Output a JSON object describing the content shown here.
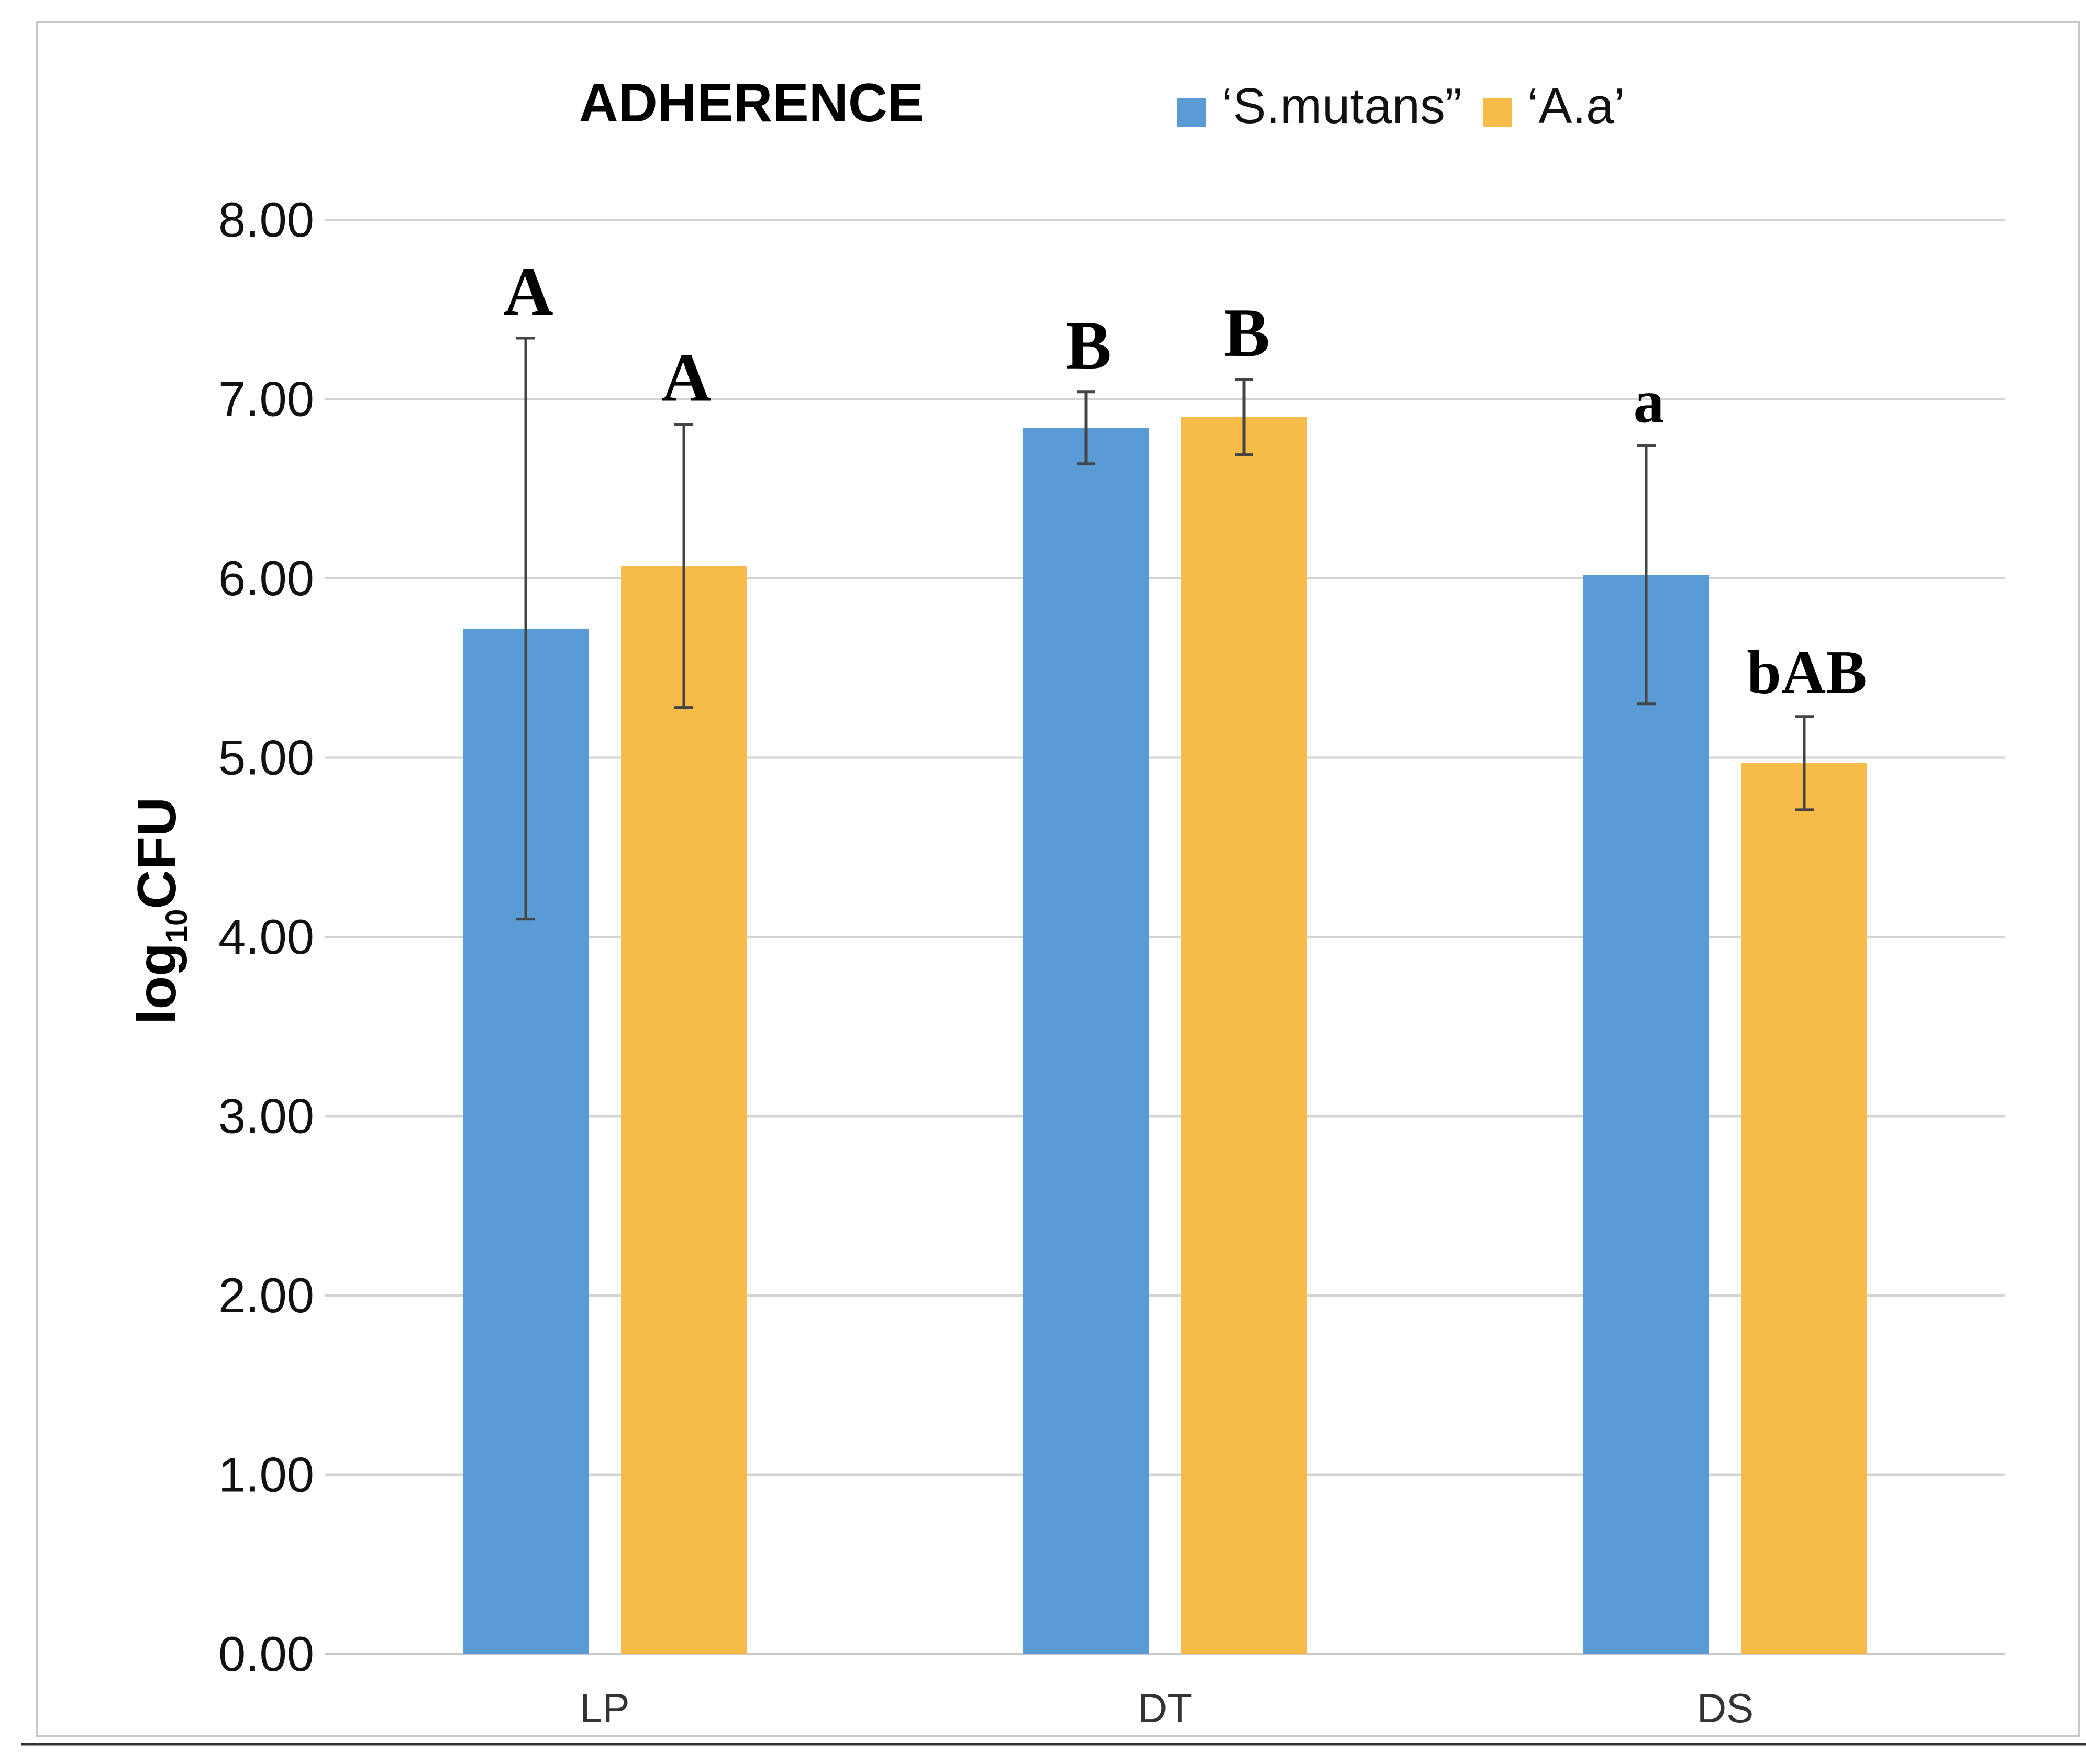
{
  "chart_data": {
    "type": "bar",
    "title": "ADHERENCE",
    "xlabel": "",
    "ylabel": "log",
    "ylabel_subscript": "10",
    "ylabel_suffix": "CFU",
    "ylim": [
      0,
      8
    ],
    "y_ticks": [
      "0.00",
      "1.00",
      "2.00",
      "3.00",
      "4.00",
      "5.00",
      "6.00",
      "7.00",
      "8.00"
    ],
    "grid": true,
    "legend_position": "top-right",
    "categories": [
      "LP",
      "DT",
      "DS"
    ],
    "series": [
      {
        "name": "‘S.mutans”",
        "color": "#5b9bd5",
        "values": [
          5.72,
          6.84,
          6.02
        ],
        "errors": [
          1.62,
          0.2,
          0.72
        ],
        "labels": [
          "A",
          "B",
          "a"
        ]
      },
      {
        "name": "‘A.a’",
        "color": "#f7bb48",
        "values": [
          6.07,
          6.9,
          4.97
        ],
        "errors": [
          0.79,
          0.21,
          0.26
        ],
        "labels": [
          "A",
          "B",
          "bAB"
        ]
      }
    ]
  }
}
